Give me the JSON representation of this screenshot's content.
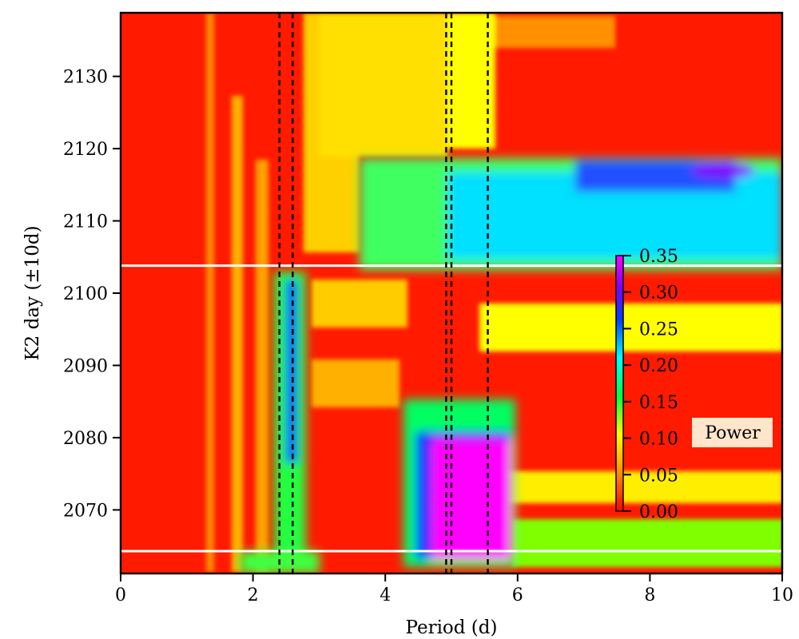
{
  "chart_data": {
    "type": "heatmap",
    "xlabel": "Period (d)",
    "ylabel": "K2 day (±10d)",
    "xlim": [
      0,
      10
    ],
    "ylim": [
      2061.2,
      2138.8
    ],
    "x_ticks": [
      0,
      2,
      4,
      6,
      8,
      10
    ],
    "x_tick_labels": [
      "0",
      "2",
      "4",
      "6",
      "8",
      "10"
    ],
    "y_ticks": [
      2070,
      2080,
      2090,
      2100,
      2110,
      2120,
      2130
    ],
    "y_tick_labels": [
      "2070",
      "2080",
      "2090",
      "2100",
      "2110",
      "2120",
      "2130"
    ],
    "colormap": "gist_rainbow_r",
    "colorbar": {
      "label": "Power",
      "range": [
        0,
        0.35
      ],
      "ticks": [
        0,
        0.05,
        0.1,
        0.15,
        0.2,
        0.25,
        0.3,
        0.35
      ],
      "tick_labels": [
        "0.00",
        "0.05",
        "0.10",
        "0.15",
        "0.20",
        "0.25",
        "0.30",
        "0.35"
      ],
      "placement": "inside-right"
    },
    "vertical_dashed_lines_period": [
      2.4,
      2.6,
      4.92,
      5.0,
      5.55
    ],
    "horizontal_white_lines_day": [
      2103.8,
      2064.3
    ],
    "features": [
      {
        "period_range": [
          2.45,
          2.85
        ],
        "day_range": [
          2064,
          2103
        ],
        "level": 0.27
      },
      {
        "period_range": [
          4.6,
          5.8
        ],
        "day_range": [
          2064,
          2081
        ],
        "level": 0.35
      },
      {
        "period_range": [
          4.4,
          10.0
        ],
        "day_range": [
          2103,
          2119
        ],
        "level": 0.22
      },
      {
        "period_range": [
          8.5,
          9.7
        ],
        "day_range": [
          2113,
          2118
        ],
        "level": 0.31
      }
    ]
  }
}
